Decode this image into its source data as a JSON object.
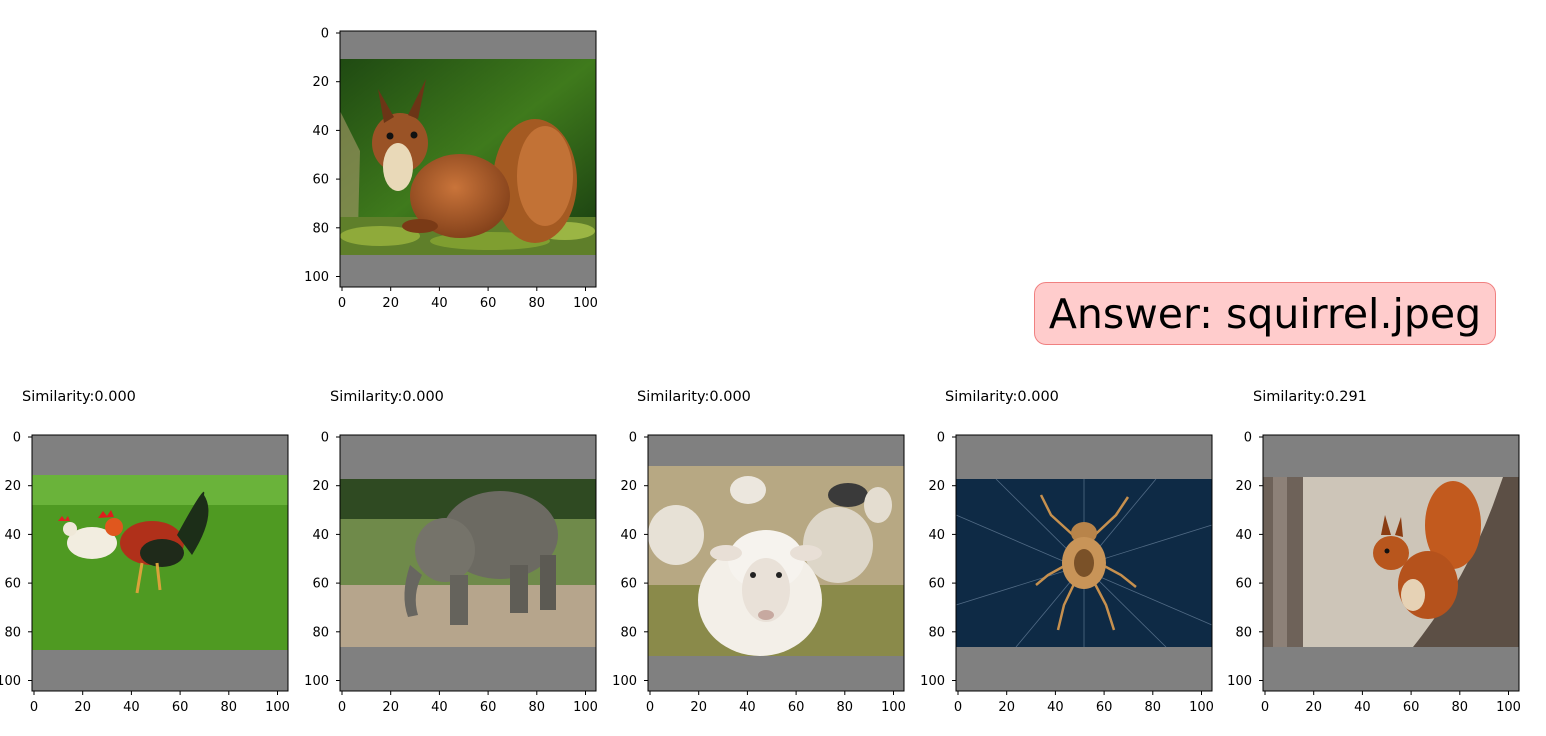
{
  "query": {
    "image": "red-squirrel-on-mossy-log",
    "x_ticks": [
      "0",
      "20",
      "40",
      "60",
      "80",
      "100"
    ],
    "y_ticks": [
      "0",
      "20",
      "40",
      "60",
      "80",
      "100"
    ]
  },
  "answer": {
    "text": "Answer: squirrel.jpeg",
    "bg_color": "#ffcccc",
    "border_color": "#f08080"
  },
  "results": [
    {
      "title": "Similarity:0.000",
      "image": "rooster-and-hen-on-grass"
    },
    {
      "title": "Similarity:0.000",
      "image": "elephant-in-mud"
    },
    {
      "title": "Similarity:0.000",
      "image": "sheep-in-field"
    },
    {
      "title": "Similarity:0.000",
      "image": "spider-on-web"
    },
    {
      "title": "Similarity:0.291",
      "image": "squirrel-on-branch"
    }
  ],
  "colors": {
    "padding_gray": "#808080"
  }
}
